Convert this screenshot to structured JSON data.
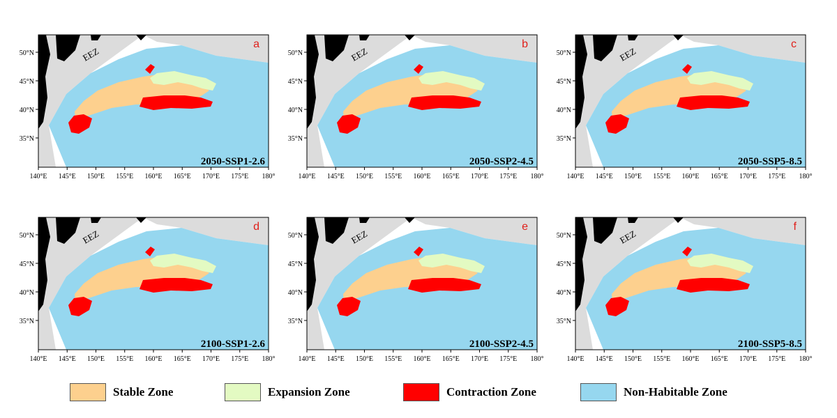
{
  "colors": {
    "stable": "#fdd08e",
    "expansion": "#e3fac2",
    "contraction": "#ff0000",
    "non_habitable": "#96d7ef",
    "eez": "#dcdcdc",
    "land": "#000000",
    "panel_letter": "#e0201b"
  },
  "map": {
    "eez_label": "EEZ",
    "x_ticks": [
      "140°E",
      "145°E",
      "150°E",
      "155°E",
      "160°E",
      "165°E",
      "170°E",
      "175°E",
      "180°"
    ],
    "y_ticks": [
      "50°N",
      "45°N",
      "40°N",
      "35°N"
    ],
    "x_range": [
      140,
      180
    ],
    "y_range": [
      30,
      53
    ]
  },
  "panels": [
    {
      "letter": "a",
      "scenario": "2050-SSP1-2.6"
    },
    {
      "letter": "b",
      "scenario": "2050-SSP2-4.5"
    },
    {
      "letter": "c",
      "scenario": "2050-SSP5-8.5"
    },
    {
      "letter": "d",
      "scenario": "2100-SSP1-2.6"
    },
    {
      "letter": "e",
      "scenario": "2100-SSP2-4.5"
    },
    {
      "letter": "f",
      "scenario": "2100-SSP5-8.5"
    }
  ],
  "legend": [
    {
      "label": "Stable Zone",
      "color": "#fdd08e"
    },
    {
      "label": "Expansion Zone",
      "color": "#e3fac2"
    },
    {
      "label": "Contraction Zone",
      "color": "#ff0000"
    },
    {
      "label": "Non-Habitable Zone",
      "color": "#96d7ef"
    }
  ]
}
